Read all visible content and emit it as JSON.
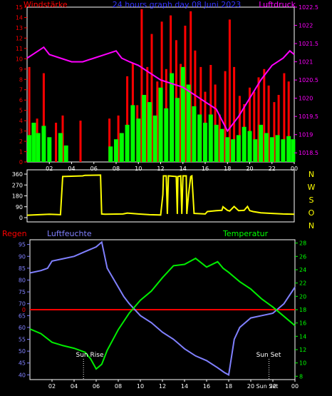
{
  "chart_data": [
    {
      "type": "bar",
      "panel": "wind-pressure",
      "title": "24 hours graph day  08 Juni 2023",
      "left_label": "Windstärke",
      "right_label": "Luftdruck",
      "x_ticks": [
        "02",
        "04",
        "06",
        "08",
        "10",
        "12",
        "14",
        "16",
        "18",
        "20",
        "22",
        "00"
      ],
      "y_left_ticks": [
        0,
        1,
        2,
        3,
        4,
        5,
        6,
        7,
        8,
        9,
        10,
        11,
        12,
        13,
        14,
        15
      ],
      "y_left_range": [
        0,
        15
      ],
      "y_right_ticks": [
        1018.5,
        1019,
        1019.5,
        1020,
        1020.5,
        1021,
        1021.5,
        1022,
        1022.5
      ],
      "y_right_range": [
        1018.25,
        1022.5
      ],
      "series": [
        {
          "kind": "gust-bars",
          "color": "#ff0000",
          "x": [
            0.2,
            0.9,
            1.5,
            2.6,
            3.2,
            4.8,
            7.4,
            8.2,
            9.0,
            9.5,
            9.9,
            10.3,
            10.8,
            11.2,
            11.7,
            12.1,
            12.5,
            12.9,
            13.4,
            13.8,
            14.2,
            14.7,
            15.1,
            15.6,
            16.0,
            16.5,
            16.9,
            17.3,
            17.8,
            18.2,
            18.6,
            19.1,
            19.5,
            20.0,
            20.4,
            20.8,
            21.3,
            21.7,
            22.2,
            22.6,
            23.1,
            23.5
          ],
          "values": [
            9.2,
            4.2,
            8.6,
            3.8,
            4.5,
            4.0,
            4.2,
            4.5,
            8.3,
            9.6,
            5.5,
            14.8,
            9.2,
            12.4,
            7.8,
            13.6,
            9.0,
            14.2,
            11.8,
            9.5,
            13.2,
            14.6,
            10.8,
            9.2,
            6.8,
            9.4,
            7.5,
            4.6,
            8.8,
            13.8,
            9.2,
            6.4,
            5.6,
            7.2,
            6.8,
            8.2,
            9.0,
            7.4,
            5.8,
            6.5,
            8.6,
            7.8
          ]
        },
        {
          "kind": "wind-bars",
          "color": "#00ff00",
          "x": [
            0.2,
            0.6,
            1.0,
            1.5,
            2.0,
            3.0,
            3.5,
            7.5,
            8.0,
            8.5,
            9.0,
            9.5,
            10.0,
            10.5,
            11.0,
            11.5,
            12.0,
            12.5,
            13.0,
            13.5,
            14.0,
            14.5,
            15.0,
            15.5,
            16.0,
            16.5,
            17.0,
            17.5,
            18.0,
            18.5,
            19.0,
            19.5,
            20.0,
            20.5,
            21.0,
            21.5,
            22.0,
            22.5,
            23.0,
            23.5,
            23.9
          ],
          "values": [
            2.6,
            3.8,
            2.8,
            3.5,
            2.4,
            2.8,
            1.6,
            1.5,
            2.2,
            2.8,
            3.6,
            5.5,
            4.2,
            6.5,
            5.8,
            4.5,
            7.2,
            5.2,
            8.6,
            6.2,
            9.2,
            7.5,
            5.4,
            4.6,
            3.8,
            4.6,
            3.6,
            3.2,
            2.4,
            2.2,
            2.6,
            3.4,
            3.0,
            2.2,
            3.6,
            2.8,
            2.4,
            2.6,
            2.2,
            2.5,
            2.2
          ]
        },
        {
          "kind": "pressure-line",
          "axis": "right",
          "color": "#ff00ff",
          "x": [
            0,
            0.5,
            1.5,
            2.0,
            3.0,
            4.0,
            5.0,
            6.0,
            7.0,
            8.0,
            8.5,
            9.2,
            10.0,
            11.0,
            12.0,
            13.0,
            14.0,
            15.0,
            16.0,
            17.0,
            17.5,
            18.0,
            19.0,
            20.0,
            21.0,
            22.0,
            23.0,
            23.6,
            24.0
          ],
          "values": [
            1021.1,
            1021.2,
            1021.4,
            1021.2,
            1021.1,
            1021.0,
            1021.0,
            1021.1,
            1021.2,
            1021.3,
            1021.1,
            1021.0,
            1020.9,
            1020.7,
            1020.5,
            1020.4,
            1020.3,
            1020.1,
            1019.9,
            1019.7,
            1019.4,
            1019.1,
            1019.5,
            1020.0,
            1020.5,
            1020.9,
            1021.1,
            1021.3,
            1021.2
          ]
        }
      ]
    },
    {
      "type": "line",
      "panel": "wind-direction",
      "right_labels": [
        "N",
        "W",
        "S",
        "O",
        "N"
      ],
      "y_ticks": [
        0,
        90,
        180,
        270,
        360
      ],
      "y_range": [
        0,
        360
      ],
      "series": [
        {
          "kind": "direction-line",
          "color": "#ffff00",
          "x": [
            0,
            2.0,
            3.0,
            3.2,
            5.0,
            5.2,
            6.6,
            6.7,
            7.0,
            8.6,
            8.7,
            9.0,
            10.0,
            11.0,
            12.0,
            12.2,
            12.25,
            12.5,
            12.6,
            12.7,
            13.4,
            13.5,
            13.55,
            13.8,
            13.9,
            14.0,
            14.3,
            14.35,
            14.5,
            14.7,
            14.8,
            15.0,
            16.0,
            16.2,
            17.0,
            17.5,
            17.6,
            18.0,
            18.2,
            18.6,
            19.0,
            19.5,
            19.8,
            20.0,
            20.3,
            21.0,
            22.0,
            23.0,
            24.0
          ],
          "values": [
            20,
            28,
            24,
            340,
            345,
            350,
            352,
            30,
            28,
            30,
            32,
            38,
            30,
            24,
            22,
            190,
            345,
            345,
            30,
            345,
            340,
            30,
            340,
            345,
            30,
            345,
            345,
            30,
            190,
            340,
            345,
            35,
            30,
            50,
            58,
            60,
            90,
            60,
            55,
            92,
            58,
            60,
            92,
            58,
            50,
            40,
            35,
            30,
            28
          ]
        }
      ]
    },
    {
      "type": "line",
      "panel": "rain-humidity-temperature",
      "labels": {
        "rain": "Regen",
        "humidity": "Luftfeuchte",
        "temperature": "Temperatur"
      },
      "annotations": {
        "sunrise": "Sun Rise",
        "sunset": "Sun Set",
        "bottom_right_label": "Sun Set"
      },
      "sunrise_hour": 4.85,
      "sunset_hour": 21.65,
      "x_ticks": [
        "02",
        "04",
        "06",
        "08",
        "10",
        "12",
        "14",
        "16",
        "18",
        "20",
        "22",
        "00"
      ],
      "y_humidity_ticks": [
        40,
        45,
        50,
        55,
        60,
        65,
        70,
        75,
        80,
        85,
        90,
        95
      ],
      "y_humidity_range": [
        38,
        97
      ],
      "y_rain_tick": "0",
      "y_temperature_ticks": [
        8,
        10,
        12,
        14,
        16,
        18,
        20,
        22,
        24,
        26,
        28
      ],
      "y_temperature_range": [
        7.5,
        28.5
      ],
      "series": [
        {
          "kind": "humidity",
          "axis": "left",
          "color": "#8080ff",
          "x": [
            0,
            1,
            1.6,
            2,
            3,
            4,
            5,
            6,
            6.5,
            7,
            8,
            8.5,
            9,
            10,
            11,
            12,
            13,
            14,
            15,
            16,
            17,
            17.6,
            18,
            18.5,
            19,
            20,
            21,
            22,
            23,
            24
          ],
          "values": [
            83,
            84,
            85,
            88,
            89,
            90,
            92,
            94,
            96,
            85,
            77,
            73,
            70,
            65,
            62,
            58,
            55,
            51,
            48,
            46,
            43,
            41,
            40,
            55,
            60,
            64,
            65,
            66,
            70,
            77
          ]
        },
        {
          "kind": "temperature",
          "axis": "right",
          "color": "#00ee00",
          "x": [
            0,
            1,
            2,
            3,
            4,
            5,
            5.5,
            6,
            6.5,
            7,
            8,
            9,
            10,
            11,
            12,
            13,
            14,
            15,
            16,
            17,
            17.5,
            18,
            19,
            20,
            21,
            22,
            23,
            24
          ],
          "values": [
            15.1,
            14.4,
            13.1,
            12.6,
            12.2,
            11.6,
            10.6,
            9.1,
            9.8,
            11.9,
            15.0,
            17.5,
            19.4,
            20.8,
            22.8,
            24.6,
            24.8,
            25.7,
            24.4,
            25.2,
            24.2,
            23.6,
            22.2,
            21.1,
            19.6,
            18.4,
            17.0,
            15.6
          ]
        },
        {
          "kind": "rain",
          "color": "#ff0000",
          "x": [
            0,
            24
          ],
          "values": [
            0,
            0
          ]
        }
      ]
    }
  ]
}
